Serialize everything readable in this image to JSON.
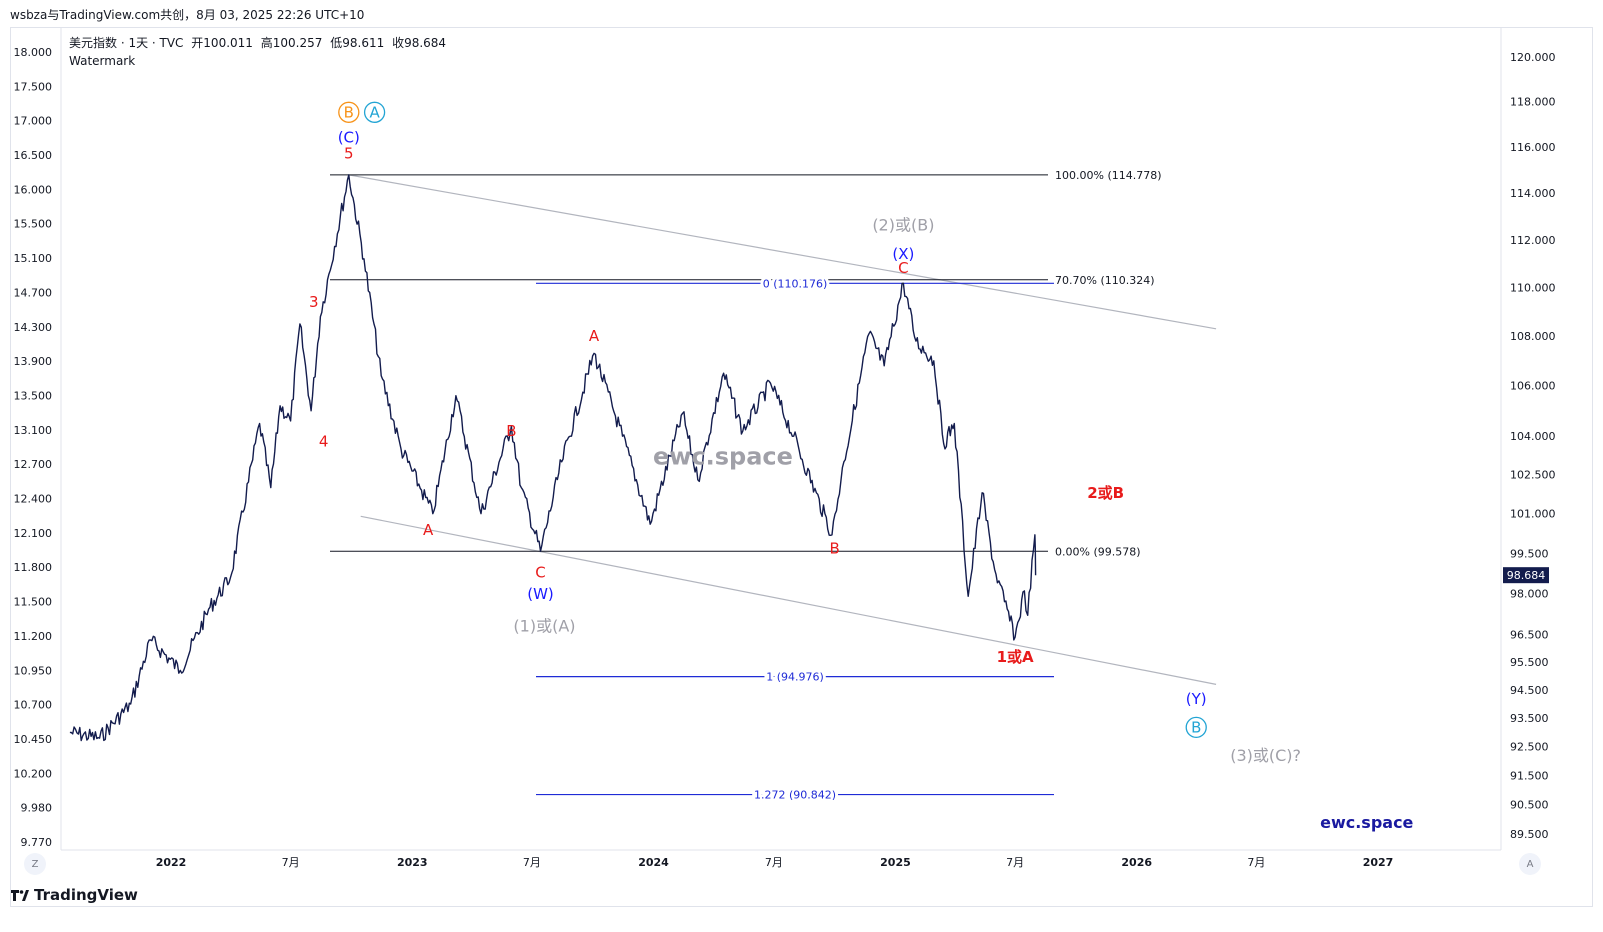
{
  "header": {
    "share_text": "wsbza与TradingView.com共创，8月 03, 2025 22:26 UTC+10"
  },
  "legend": {
    "symbol": "美元指数 · 1天 · TVC",
    "open_label": "开",
    "open": "100.011",
    "high_label": "高",
    "high": "100.257",
    "low_label": "低",
    "low": "98.611",
    "close_label": "收",
    "close": "98.684",
    "watermark": "Watermark"
  },
  "footer": {
    "brand": "TradingView"
  },
  "buttons": {
    "left_corner": "Z",
    "right_corner": "A"
  },
  "chart_data": {
    "type": "line",
    "title": "美元指数 · 1天 · TVC",
    "left_axis_ticks": [
      "18.000",
      "17.500",
      "17.000",
      "16.500",
      "16.000",
      "15.500",
      "15.100",
      "14.700",
      "14.300",
      "13.900",
      "13.500",
      "13.100",
      "12.700",
      "12.400",
      "12.100",
      "11.800",
      "11.500",
      "11.200",
      "10.950",
      "10.700",
      "10.450",
      "10.200",
      "9.980",
      "9.770"
    ],
    "right_axis": {
      "ticks": [
        "120.000",
        "118.000",
        "116.000",
        "114.000",
        "112.000",
        "110.000",
        "108.000",
        "106.000",
        "104.000",
        "102.500",
        "101.000",
        "99.500",
        "98.000",
        "96.500",
        "95.500",
        "94.500",
        "93.500",
        "92.500",
        "91.500",
        "90.500",
        "89.500"
      ],
      "log_scale": true
    },
    "x_ticks": [
      "2022",
      "7月",
      "2023",
      "7月",
      "2024",
      "7月",
      "2025",
      "7月",
      "2026",
      "7月",
      "2027"
    ],
    "last_price_label": "98.684",
    "price_path": [
      {
        "x": "2021-08-01",
        "y": 93.0
      },
      {
        "x": "2021-09-15",
        "y": 92.8
      },
      {
        "x": "2021-11-01",
        "y": 94.0
      },
      {
        "x": "2021-12-01",
        "y": 96.3
      },
      {
        "x": "2022-01-15",
        "y": 95.2
      },
      {
        "x": "2022-03-01",
        "y": 97.5
      },
      {
        "x": "2022-04-01",
        "y": 98.6
      },
      {
        "x": "2022-05-15",
        "y": 104.5
      },
      {
        "x": "2022-06-01",
        "y": 102.0
      },
      {
        "x": "2022-06-15",
        "y": 105.2
      },
      {
        "x": "2022-07-01",
        "y": 104.6
      },
      {
        "x": "2022-07-15",
        "y": 108.5
      },
      {
        "x": "2022-08-01",
        "y": 105.0
      },
      {
        "x": "2022-08-15",
        "y": 108.8
      },
      {
        "x": "2022-09-27",
        "y": 114.778
      },
      {
        "x": "2022-10-20",
        "y": 111.2
      },
      {
        "x": "2022-11-15",
        "y": 106.4
      },
      {
        "x": "2022-12-15",
        "y": 103.5
      },
      {
        "x": "2023-01-15",
        "y": 101.9
      },
      {
        "x": "2023-02-01",
        "y": 101.0
      },
      {
        "x": "2023-03-08",
        "y": 105.6
      },
      {
        "x": "2023-04-15",
        "y": 101.0
      },
      {
        "x": "2023-05-31",
        "y": 104.4
      },
      {
        "x": "2023-06-15",
        "y": 102.0
      },
      {
        "x": "2023-07-14",
        "y": 99.578
      },
      {
        "x": "2023-08-15",
        "y": 103.0
      },
      {
        "x": "2023-10-03",
        "y": 107.3
      },
      {
        "x": "2023-11-15",
        "y": 104.0
      },
      {
        "x": "2023-12-27",
        "y": 100.6
      },
      {
        "x": "2024-02-14",
        "y": 104.9
      },
      {
        "x": "2024-03-08",
        "y": 102.3
      },
      {
        "x": "2024-04-16",
        "y": 106.5
      },
      {
        "x": "2024-05-15",
        "y": 104.2
      },
      {
        "x": "2024-06-26",
        "y": 106.1
      },
      {
        "x": "2024-07-31",
        "y": 104.0
      },
      {
        "x": "2024-09-27",
        "y": 100.2
      },
      {
        "x": "2024-10-15",
        "y": 103.0
      },
      {
        "x": "2024-11-22",
        "y": 108.1
      },
      {
        "x": "2024-12-15",
        "y": 106.8
      },
      {
        "x": "2025-01-13",
        "y": 110.176
      },
      {
        "x": "2025-02-01",
        "y": 107.8
      },
      {
        "x": "2025-02-28",
        "y": 107.0
      },
      {
        "x": "2025-03-15",
        "y": 103.7
      },
      {
        "x": "2025-03-31",
        "y": 104.5
      },
      {
        "x": "2025-04-21",
        "y": 97.9
      },
      {
        "x": "2025-05-12",
        "y": 101.8
      },
      {
        "x": "2025-05-31",
        "y": 98.9
      },
      {
        "x": "2025-06-15",
        "y": 97.7
      },
      {
        "x": "2025-07-01",
        "y": 96.4
      },
      {
        "x": "2025-07-15",
        "y": 98.1
      },
      {
        "x": "2025-07-20",
        "y": 97.2
      },
      {
        "x": "2025-07-31",
        "y": 100.2
      },
      {
        "x": "2025-08-01",
        "y": 98.684
      }
    ],
    "fib_retracement": [
      {
        "label": "100.00% (114.778)",
        "value": 114.778
      },
      {
        "label": "70.70% (110.324)",
        "value": 110.324
      },
      {
        "label": "0.00% (99.578)",
        "value": 99.578
      }
    ],
    "fib_extension": [
      {
        "label": "0 (110.176)",
        "value": 110.176
      },
      {
        "label": "1 (94.976)",
        "value": 94.976
      },
      {
        "label": "1.272 (90.842)",
        "value": 90.842
      }
    ],
    "channel": {
      "upper": [
        {
          "x": "2022-09-27",
          "y": 114.778
        },
        {
          "x": "2026-05-01",
          "y": 108.3
        }
      ],
      "lower": [
        {
          "x": "2022-10-15",
          "y": 100.9
        },
        {
          "x": "2026-05-01",
          "y": 94.7
        }
      ]
    },
    "annotations": [
      {
        "text": "B",
        "x": "2022-09-27",
        "y": 117.3,
        "color": "#f7931a",
        "circled": true
      },
      {
        "text": "A",
        "x": "2022-11-05",
        "y": 117.3,
        "color": "#22a4d4",
        "circled": true
      },
      {
        "text": "(C)",
        "x": "2022-09-27",
        "y": 116.2,
        "color": "#1a1aff"
      },
      {
        "text": "5",
        "x": "2022-09-27",
        "y": 115.5,
        "color": "#e81b1b"
      },
      {
        "text": "3",
        "x": "2022-08-05",
        "y": 109.2,
        "color": "#e81b1b"
      },
      {
        "text": "4",
        "x": "2022-08-20",
        "y": 103.6,
        "color": "#e81b1b"
      },
      {
        "text": "A",
        "x": "2023-01-25",
        "y": 100.2,
        "color": "#e81b1b"
      },
      {
        "text": "B",
        "x": "2023-05-31",
        "y": 104.0,
        "color": "#e81b1b"
      },
      {
        "text": "C",
        "x": "2023-07-14",
        "y": 98.6,
        "color": "#e81b1b"
      },
      {
        "text": "(W)",
        "x": "2023-07-14",
        "y": 97.8,
        "color": "#1a1aff"
      },
      {
        "text": "(1)或(A)",
        "x": "2023-07-20",
        "y": 96.6,
        "color": "#a0a0a8"
      },
      {
        "text": "A",
        "x": "2023-10-03",
        "y": 107.8,
        "color": "#e81b1b"
      },
      {
        "text": "B",
        "x": "2024-10-01",
        "y": 99.5,
        "color": "#e81b1b"
      },
      {
        "text": "(2)或(B)",
        "x": "2025-01-13",
        "y": 112.4,
        "color": "#a0a0a8"
      },
      {
        "text": "(X)",
        "x": "2025-01-13",
        "y": 111.2,
        "color": "#1a1aff"
      },
      {
        "text": "C",
        "x": "2025-01-13",
        "y": 110.6,
        "color": "#e81b1b"
      },
      {
        "text": "2或B",
        "x": "2025-11-15",
        "y": 101.6,
        "color": "#e81b1b"
      },
      {
        "text": "1或A",
        "x": "2025-07-01",
        "y": 95.5,
        "color": "#e81b1b"
      },
      {
        "text": "(Y)",
        "x": "2026-04-01",
        "y": 94.0,
        "color": "#1a1aff"
      },
      {
        "text": "B",
        "x": "2026-04-01",
        "y": 93.0,
        "color": "#22a4d4",
        "circled": true
      },
      {
        "text": "(3)或(C)?",
        "x": "2026-07-15",
        "y": 92.0,
        "color": "#a0a0a8"
      },
      {
        "text": "ewc.space",
        "x": "2024-04-15",
        "y": 102.9,
        "color": "#a0a0a8"
      },
      {
        "text": "ewc.space",
        "x": "2026-12-15",
        "y": 89.7,
        "color": "#1a1aa0"
      }
    ]
  }
}
